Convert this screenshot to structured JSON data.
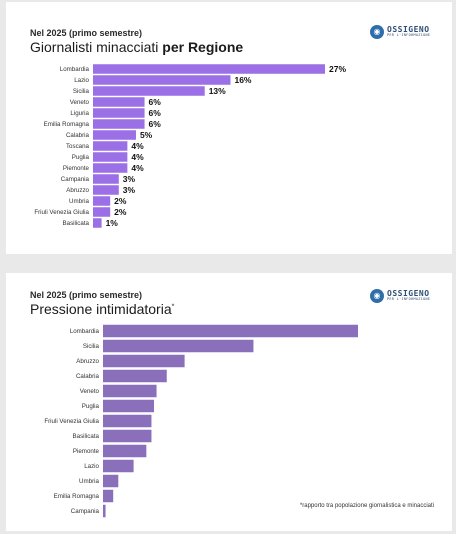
{
  "panel1": {
    "kicker": "Nel 2025 (primo semestre)",
    "title_main": "Giornalisti minacciati ",
    "title_bold": "per Regione"
  },
  "panel2": {
    "kicker": "Nel 2025 (primo semestre)",
    "title_main": "Pressione intimidatoria",
    "title_mark": "*",
    "footnote": "*rapporto tra popolazione giornalistica e minacciati"
  },
  "logo": {
    "main": "OSSIGENO",
    "sub": "PER L'INFORMAZIONE"
  },
  "colors": {
    "bar1": "#9b6fe6",
    "bar2": "#8a6fbb",
    "logo": "#2f6ea8"
  },
  "chart_data": [
    {
      "type": "bar",
      "orientation": "horizontal",
      "title": "Giornalisti minacciati per Regione",
      "categories": [
        "Lombardia",
        "Lazio",
        "Sicilia",
        "Veneto",
        "Liguria",
        "Emilia Romagna",
        "Calabria",
        "Toscana",
        "Puglia",
        "Piemonte",
        "Campania",
        "Abruzzo",
        "Umbria",
        "Friuli Venezia Giulia",
        "Basilicata"
      ],
      "values": [
        27,
        16,
        13,
        6,
        6,
        6,
        5,
        4,
        4,
        4,
        3,
        3,
        2,
        2,
        1
      ],
      "labels": [
        "27%",
        "16%",
        "13%",
        "6%",
        "6%",
        "6%",
        "5%",
        "4%",
        "4%",
        "4%",
        "3%",
        "3%",
        "2%",
        "2%",
        "1%"
      ],
      "unit": "%"
    },
    {
      "type": "bar",
      "orientation": "horizontal",
      "title": "Pressione intimidatoria",
      "categories": [
        "Lombardia",
        "Sicilia",
        "Abruzzo",
        "Calabria",
        "Veneto",
        "Puglia",
        "Friuli Venezia Giulia",
        "Basilicata",
        "Piemonte",
        "Lazio",
        "Umbria",
        "Emilia Romagna",
        "Campania"
      ],
      "values": [
        100,
        59,
        32,
        25,
        21,
        20,
        19,
        19,
        17,
        12,
        6,
        4,
        1
      ]
    }
  ]
}
